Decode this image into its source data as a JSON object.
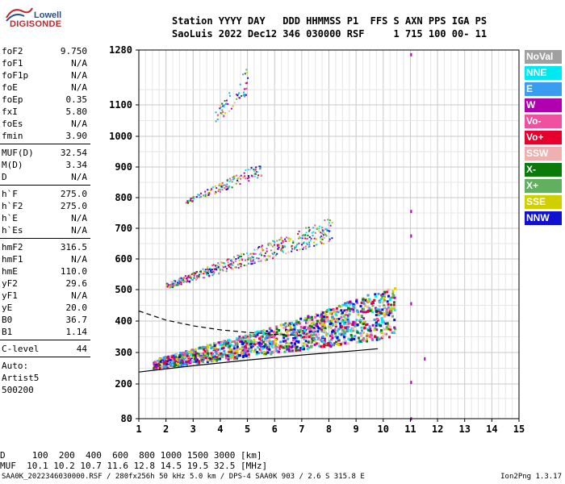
{
  "logo": {
    "line1": "Lowell",
    "line2": "DIGISONDE"
  },
  "header": {
    "line1": "Station YYYY DAY   DDD HHMMSS P1  FFS S AXN PPS IGA PS",
    "line2": "SaoLuis 2022 Dec12 346 030000 RSF     1 715 100 00- 11"
  },
  "params": {
    "group1": [
      {
        "k": "foF2",
        "v": "9.750"
      },
      {
        "k": "foF1",
        "v": "N/A"
      },
      {
        "k": "foF1p",
        "v": "N/A"
      },
      {
        "k": "foE",
        "v": "N/A"
      },
      {
        "k": "foEp",
        "v": "0.35"
      },
      {
        "k": "fxI",
        "v": "5.80"
      },
      {
        "k": "foEs",
        "v": "N/A"
      },
      {
        "k": "fmin",
        "v": "3.90"
      }
    ],
    "group2": [
      {
        "k": "MUF(D)",
        "v": "32.54"
      },
      {
        "k": "M(D)",
        "v": "3.34"
      },
      {
        "k": "D",
        "v": "N/A"
      }
    ],
    "group3": [
      {
        "k": "h`F",
        "v": "275.0"
      },
      {
        "k": "h`F2",
        "v": "275.0"
      },
      {
        "k": "h`E",
        "v": "N/A"
      },
      {
        "k": "h`Es",
        "v": "N/A"
      }
    ],
    "group4": [
      {
        "k": "hmF2",
        "v": "316.5"
      },
      {
        "k": "hmF1",
        "v": "N/A"
      },
      {
        "k": "hmE",
        "v": "110.0"
      },
      {
        "k": "yF2",
        "v": "29.6"
      },
      {
        "k": "yF1",
        "v": "N/A"
      },
      {
        "k": "yE",
        "v": "20.0"
      },
      {
        "k": "B0",
        "v": "36.7"
      },
      {
        "k": "B1",
        "v": "1.14"
      }
    ],
    "clevel": {
      "k": "C-level",
      "v": "44"
    },
    "auto": [
      "Auto:",
      "Artist5",
      "500200"
    ]
  },
  "legend": [
    {
      "label": "NoVal",
      "color": "#a0a0a0"
    },
    {
      "label": "NNE",
      "color": "#00e8f0"
    },
    {
      "label": "E",
      "color": "#3a9cf0"
    },
    {
      "label": "W",
      "color": "#b000b0"
    },
    {
      "label": "Vo-",
      "color": "#f050a0"
    },
    {
      "label": "Vo+",
      "color": "#e8002c"
    },
    {
      "label": "SSW",
      "color": "#f0b0b0"
    },
    {
      "label": "X-",
      "color": "#0a7a0a"
    },
    {
      "label": "X+",
      "color": "#60b060"
    },
    {
      "label": "SSE",
      "color": "#d0d000"
    },
    {
      "label": "NNW",
      "color": "#1010d0"
    }
  ],
  "footer": {
    "row1": "D     100  200  400  600  800 1000 1500 3000 [km]",
    "row2": "MUF  10.1 10.2 10.7 11.6 12.8 14.5 19.5 32.5 [MHz]",
    "source": "SAA0K_2022346030000.RSF / 280fx256h 50 kHz 5.0 km / DPS-4 SAA0K 903 / 2.6 S 315.8 E",
    "version": "Ion2Png 1.3.17"
  },
  "chart_data": {
    "type": "scatter",
    "xlim": [
      1,
      15
    ],
    "ylim": [
      80,
      1280
    ],
    "x_ticks": [
      1,
      2,
      3,
      4,
      5,
      6,
      7,
      8,
      9,
      10,
      11,
      12,
      13,
      14,
      15
    ],
    "y_ticks": [
      80,
      200,
      300,
      400,
      500,
      600,
      700,
      800,
      900,
      1000,
      1100,
      1280
    ],
    "grid": true,
    "traces": [
      {
        "name": "lower",
        "style": "solid",
        "x": [
          1.0,
          3.0,
          5.0,
          7.0,
          9.0,
          9.8
        ],
        "y": [
          238,
          258,
          276,
          292,
          306,
          312
        ]
      },
      {
        "name": "upper",
        "style": "dashed",
        "x": [
          1.0,
          2.0,
          3.0,
          4.0,
          5.0,
          6.0,
          7.0
        ],
        "y": [
          432,
          403,
          385,
          372,
          364,
          358,
          354
        ]
      }
    ],
    "echo_bands": [
      {
        "x": [
          1.5,
          10.4
        ],
        "y_start": [
          250,
          350
        ],
        "thickness": [
          30,
          140
        ]
      },
      {
        "x": [
          2.0,
          8.1
        ],
        "y_start": [
          505,
          660
        ],
        "thickness": [
          18,
          80
        ]
      },
      {
        "x": [
          2.7,
          5.5
        ],
        "y_start": [
          780,
          870
        ],
        "thickness": [
          12,
          50
        ]
      },
      {
        "x": [
          3.8,
          5.0
        ],
        "y_start": [
          1040,
          1140
        ],
        "thickness": [
          40,
          90
        ]
      }
    ]
  }
}
